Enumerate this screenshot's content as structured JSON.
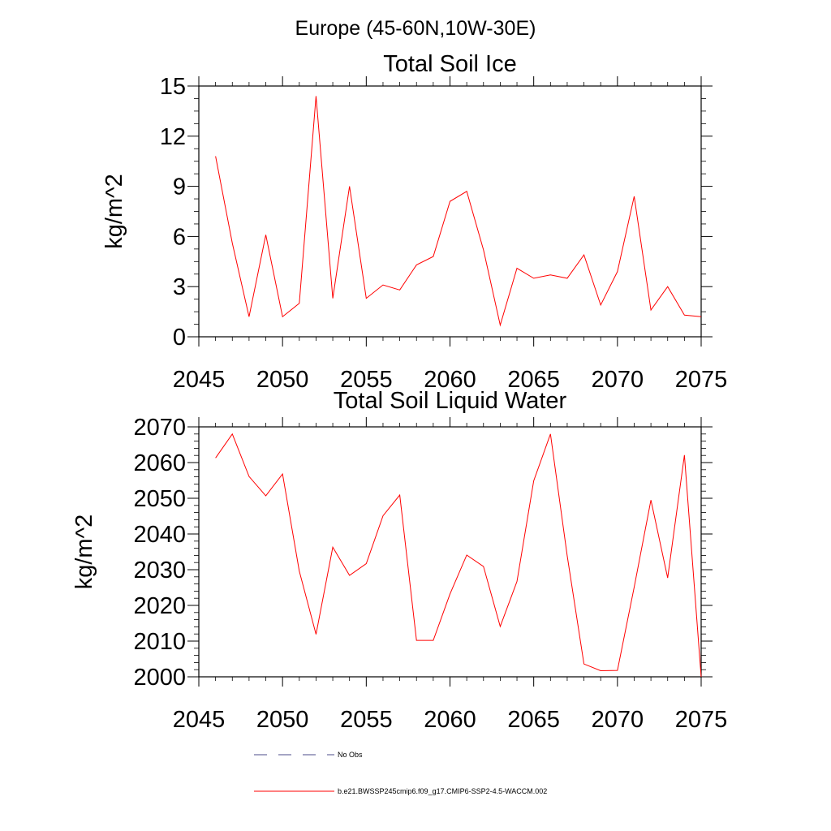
{
  "figure": {
    "title": "Europe (45-60N,10W-30E)"
  },
  "legend": {
    "entries": [
      {
        "label": "No Obs",
        "color": "#4b4b8a",
        "style": "dashed"
      },
      {
        "label": "b.e21.BWSSP245cmip6.f09_g17.CMIP6-SSP2-4.5-WACCM.002",
        "color": "#ff0000",
        "style": "solid"
      }
    ]
  },
  "chart_data": [
    {
      "type": "line",
      "title": "Total Soil Ice",
      "ylabel": "kg/m^2",
      "xlabel": "",
      "xlim": [
        2045,
        2075
      ],
      "ylim": [
        0,
        15
      ],
      "xticks": [
        2045,
        2050,
        2055,
        2060,
        2065,
        2070,
        2075
      ],
      "yticks": [
        0,
        3,
        6,
        9,
        12,
        15
      ],
      "x": [
        2046,
        2047,
        2048,
        2049,
        2050,
        2051,
        2052,
        2053,
        2054,
        2055,
        2056,
        2057,
        2058,
        2059,
        2060,
        2061,
        2062,
        2063,
        2064,
        2065,
        2066,
        2067,
        2068,
        2069,
        2070,
        2071,
        2072,
        2073,
        2074,
        2075
      ],
      "series": [
        {
          "color": "#ff0000",
          "values": [
            10.8,
            5.6,
            1.2,
            6.1,
            1.2,
            2.0,
            14.4,
            2.3,
            9.0,
            2.3,
            3.1,
            2.8,
            4.3,
            4.8,
            8.1,
            8.7,
            5.2,
            0.7,
            4.1,
            3.5,
            3.7,
            3.5,
            4.9,
            1.9,
            3.9,
            8.4,
            1.6,
            3.0,
            1.3,
            1.2
          ]
        }
      ],
      "grid": false
    },
    {
      "type": "line",
      "title": "Total Soil Liquid Water",
      "ylabel": "kg/m^2",
      "xlabel": "",
      "xlim": [
        2045,
        2075
      ],
      "ylim": [
        2000,
        2070
      ],
      "xticks": [
        2045,
        2050,
        2055,
        2060,
        2065,
        2070,
        2075
      ],
      "yticks": [
        2000,
        2010,
        2020,
        2030,
        2040,
        2050,
        2060,
        2070
      ],
      "x": [
        2046,
        2047,
        2048,
        2049,
        2050,
        2051,
        2052,
        2053,
        2054,
        2055,
        2056,
        2057,
        2058,
        2059,
        2060,
        2061,
        2062,
        2063,
        2064,
        2065,
        2066,
        2067,
        2068,
        2069,
        2070,
        2071,
        2072,
        2073,
        2074,
        2075
      ],
      "series": [
        {
          "color": "#ff0000",
          "values": [
            2061.3,
            2068.0,
            2056.1,
            2050.7,
            2056.8,
            2029.6,
            2011.9,
            2036.3,
            2028.4,
            2031.7,
            2045.1,
            2050.9,
            2010.2,
            2010.2,
            2023.2,
            2034.1,
            2030.9,
            2014.1,
            2026.7,
            2054.9,
            2068.0,
            2033.9,
            2003.6,
            2001.7,
            2001.8,
            2025.1,
            2049.5,
            2027.7,
            2062.1,
            2000.0
          ]
        }
      ],
      "grid": false
    }
  ]
}
